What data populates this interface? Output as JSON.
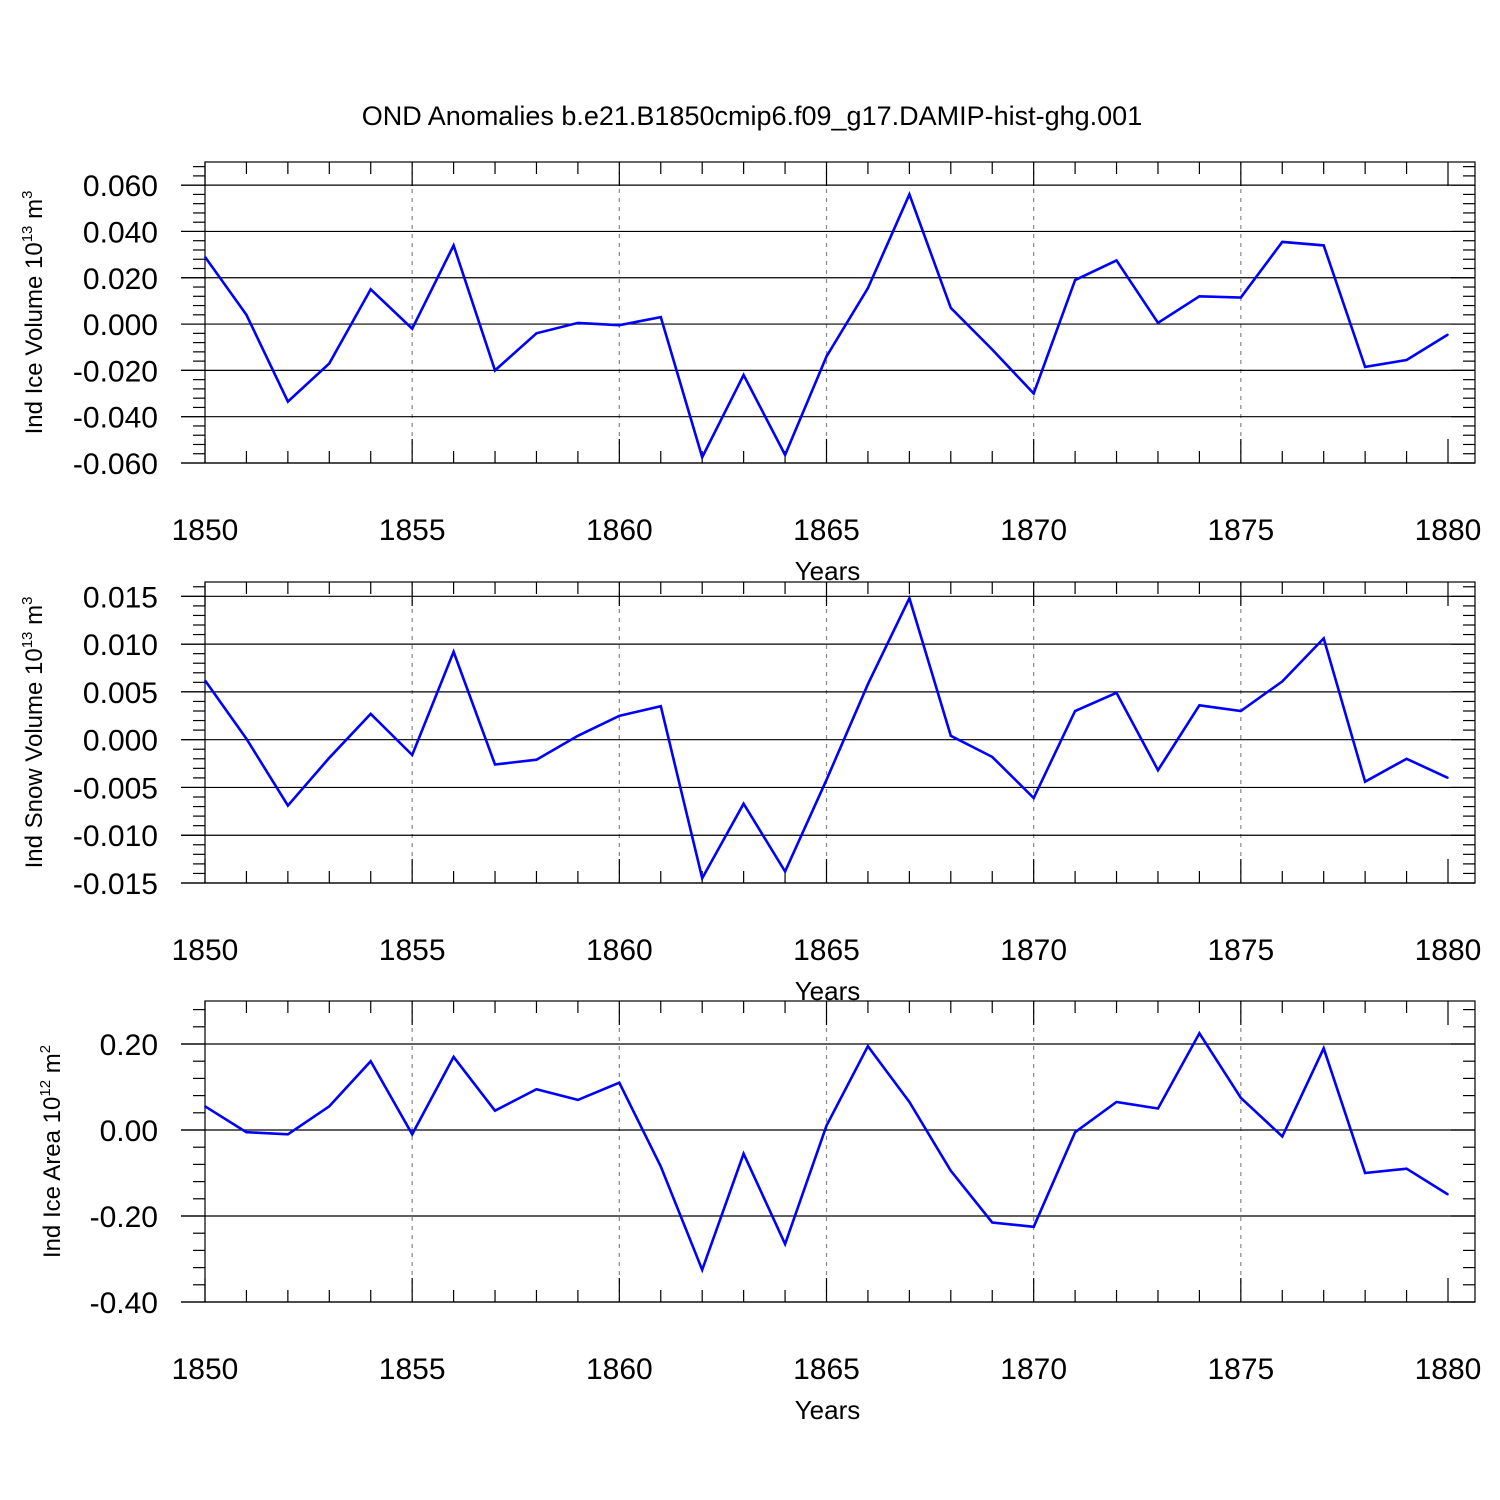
{
  "title": "OND Anomalies b.e21.B1850cmip6.f09_g17.DAMIP-hist-ghg.001",
  "colors": {
    "line": "#0000ff",
    "axis": "#000000",
    "grid": "#888888"
  },
  "chart_data": [
    {
      "type": "line",
      "ylabel_prefix": "Ind Ice Volume 10",
      "ylabel_exp": "13",
      "ylabel_unit": " m",
      "ylabel_unit_exp": "3",
      "xlabel": "Years",
      "xlim": [
        1850,
        1880
      ],
      "ylim": [
        -0.06,
        0.07
      ],
      "yticks": [
        -0.06,
        -0.04,
        -0.02,
        0.0,
        0.02,
        0.04,
        0.06
      ],
      "ytick_labels": [
        "-0.060",
        "-0.040",
        "-0.020",
        "0.000",
        "0.020",
        "0.040",
        "0.060"
      ],
      "xticks": [
        1850,
        1855,
        1860,
        1865,
        1870,
        1875,
        1880
      ],
      "xtick_labels": [
        "1850",
        "1855",
        "1860",
        "1865",
        "1870",
        "1875",
        "1880"
      ],
      "grid": "vertical dashed at major x ticks",
      "x": [
        1850,
        1851,
        1852,
        1853,
        1854,
        1855,
        1856,
        1857,
        1858,
        1859,
        1860,
        1861,
        1862,
        1863,
        1864,
        1865,
        1866,
        1867,
        1868,
        1869,
        1870,
        1871,
        1872,
        1873,
        1874,
        1875,
        1876,
        1877,
        1878,
        1879,
        1880
      ],
      "values": [
        0.029,
        0.004,
        -0.0335,
        -0.017,
        0.015,
        -0.002,
        0.034,
        -0.02,
        -0.004,
        0.0005,
        -0.0005,
        0.003,
        -0.0575,
        -0.022,
        -0.0565,
        -0.014,
        0.0155,
        0.056,
        0.007,
        -0.011,
        -0.03,
        0.019,
        0.0275,
        0.0005,
        0.012,
        0.0115,
        0.0355,
        0.034,
        -0.0185,
        -0.0155,
        -0.0045
      ]
    },
    {
      "type": "line",
      "ylabel_prefix": "Ind Snow Volume 10",
      "ylabel_exp": "13",
      "ylabel_unit": " m",
      "ylabel_unit_exp": "3",
      "xlabel": "Years",
      "xlim": [
        1850,
        1880
      ],
      "ylim": [
        -0.015,
        0.0165
      ],
      "yticks": [
        -0.015,
        -0.01,
        -0.005,
        0.0,
        0.005,
        0.01,
        0.015
      ],
      "ytick_labels": [
        "-0.015",
        "-0.010",
        "-0.005",
        "0.000",
        "0.005",
        "0.010",
        "0.015"
      ],
      "xticks": [
        1850,
        1855,
        1860,
        1865,
        1870,
        1875,
        1880
      ],
      "xtick_labels": [
        "1850",
        "1855",
        "1860",
        "1865",
        "1870",
        "1875",
        "1880"
      ],
      "grid": "vertical dashed at major x ticks",
      "x": [
        1850,
        1851,
        1852,
        1853,
        1854,
        1855,
        1856,
        1857,
        1858,
        1859,
        1860,
        1861,
        1862,
        1863,
        1864,
        1865,
        1866,
        1867,
        1868,
        1869,
        1870,
        1871,
        1872,
        1873,
        1874,
        1875,
        1876,
        1877,
        1878,
        1879,
        1880
      ],
      "values": [
        0.0062,
        0.0001,
        -0.0069,
        -0.0019,
        0.0027,
        -0.0016,
        0.0092,
        -0.0026,
        -0.0021,
        0.0004,
        0.0025,
        0.0035,
        -0.0145,
        -0.0067,
        -0.0138,
        -0.0042,
        0.0058,
        0.0148,
        0.0004,
        -0.0018,
        -0.0061,
        0.003,
        0.0049,
        -0.0032,
        0.0036,
        0.003,
        0.0061,
        0.0106,
        -0.0044,
        -0.002,
        -0.004
      ]
    },
    {
      "type": "line",
      "ylabel_prefix": "Ind Ice Area 10",
      "ylabel_exp": "12",
      "ylabel_unit": " m",
      "ylabel_unit_exp": "2",
      "xlabel": "Years",
      "xlim": [
        1850,
        1880
      ],
      "ylim": [
        -0.4,
        0.3
      ],
      "yticks": [
        -0.4,
        -0.2,
        0.0,
        0.2
      ],
      "ytick_labels": [
        "-0.40",
        "-0.20",
        "0.00",
        "0.20"
      ],
      "xticks": [
        1850,
        1855,
        1860,
        1865,
        1870,
        1875,
        1880
      ],
      "xtick_labels": [
        "1850",
        "1855",
        "1860",
        "1865",
        "1870",
        "1875",
        "1880"
      ],
      "grid": "vertical dashed at major x ticks",
      "x": [
        1850,
        1851,
        1852,
        1853,
        1854,
        1855,
        1856,
        1857,
        1858,
        1859,
        1860,
        1861,
        1862,
        1863,
        1864,
        1865,
        1866,
        1867,
        1868,
        1869,
        1870,
        1871,
        1872,
        1873,
        1874,
        1875,
        1876,
        1877,
        1878,
        1879,
        1880
      ],
      "values": [
        0.055,
        -0.005,
        -0.01,
        0.055,
        0.16,
        -0.01,
        0.17,
        0.045,
        0.095,
        0.07,
        0.11,
        -0.085,
        -0.325,
        -0.055,
        -0.265,
        0.01,
        0.195,
        0.065,
        -0.095,
        -0.215,
        -0.225,
        -0.005,
        0.065,
        0.05,
        0.225,
        0.075,
        -0.015,
        0.19,
        -0.1,
        -0.09,
        -0.15
      ]
    }
  ]
}
